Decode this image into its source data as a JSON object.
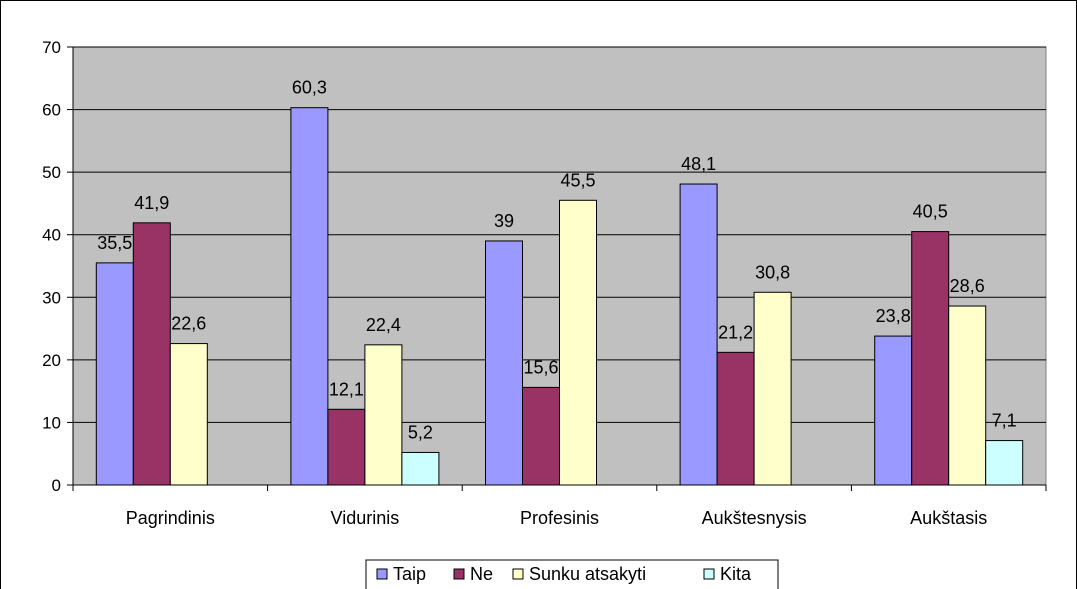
{
  "chart_data": {
    "type": "bar",
    "categories": [
      "Pagrindinis",
      "Vidurinis",
      "Profesinis",
      "Aukštesnysis",
      "Aukštasis"
    ],
    "series": [
      {
        "name": "Taip",
        "values": [
          35.5,
          60.3,
          39,
          48.1,
          23.8
        ],
        "labels": [
          "35,5",
          "60,3",
          "39",
          "48,1",
          "23,8"
        ],
        "color": "#9999FF"
      },
      {
        "name": "Ne",
        "values": [
          41.9,
          12.1,
          15.6,
          21.2,
          40.5
        ],
        "labels": [
          "41,9",
          "12,1",
          "15,6",
          "21,2",
          "40,5"
        ],
        "color": "#993366"
      },
      {
        "name": "Sunku atsakyti",
        "values": [
          22.6,
          22.4,
          45.5,
          30.8,
          28.6
        ],
        "labels": [
          "22,6",
          "22,4",
          "45,5",
          "30,8",
          "28,6"
        ],
        "color": "#FFFFCC"
      },
      {
        "name": "Kita",
        "values": [
          null,
          5.2,
          null,
          null,
          7.1
        ],
        "labels": [
          null,
          "5,2",
          null,
          null,
          "7,1"
        ],
        "color": "#CCFFFF"
      }
    ],
    "ylim": [
      0,
      70
    ],
    "yticks": [
      0,
      10,
      20,
      30,
      40,
      50,
      60,
      70
    ],
    "grid": true,
    "legend": "bottom",
    "plot_background": "#C0C0C0"
  }
}
